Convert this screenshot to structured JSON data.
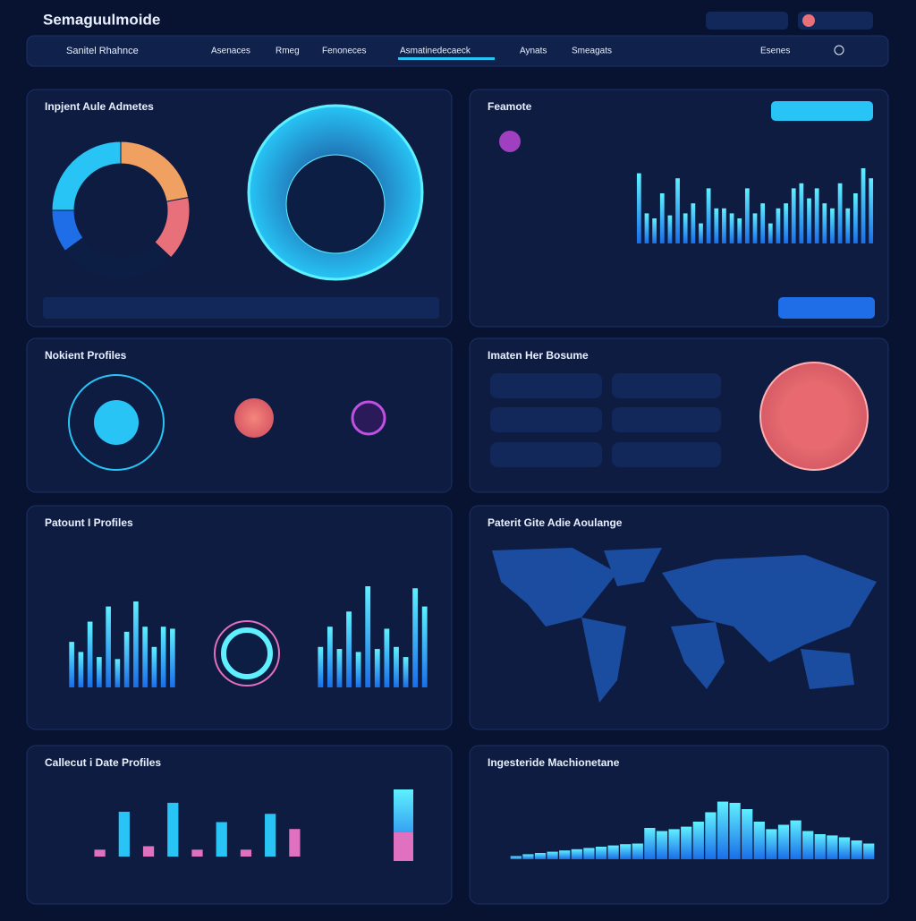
{
  "header": {
    "title": "Semaguulmoide"
  },
  "nav": {
    "brand": "Sanitel Rhahnce",
    "items": [
      "Asenaces",
      "Rmeg",
      "Fenoneces",
      "Asmatinedecaeck",
      "Aynats",
      "Smeagats",
      "Esenes"
    ]
  },
  "panels": [
    {
      "title": "Inpjent Aule Admetes"
    },
    {
      "title": "Feamote"
    },
    {
      "title": "Nokient Profiles"
    },
    {
      "title": "Imaten Her Bosume"
    },
    {
      "title": "Patount I Profiles"
    },
    {
      "title": "Paterit Gite Adie Aoulange"
    },
    {
      "title": "Callecut i Date Profiles"
    },
    {
      "title": "Ingesteride Machionetane"
    }
  ],
  "donut": {
    "values": [
      22,
      15,
      28,
      10,
      25
    ],
    "colors": [
      "#f0a060",
      "#e8707a",
      "#0d1e45",
      "#1f6ee8",
      "#27c4f5"
    ]
  },
  "feature_bars": {
    "ylim": [
      0,
      100
    ],
    "values": [
      70,
      30,
      25,
      50,
      28,
      65,
      30,
      40,
      20,
      55,
      35,
      35,
      30,
      25,
      55,
      30,
      40,
      20,
      35,
      40,
      55,
      60,
      45,
      55,
      40,
      35,
      60,
      35,
      50,
      75,
      65
    ],
    "color": "#27c4f5"
  },
  "profile_bars_left": {
    "ylim": [
      0,
      100
    ],
    "values": [
      45,
      35,
      65,
      30,
      80,
      28,
      55,
      85,
      60,
      40,
      60,
      58
    ],
    "color": "#27c4f5"
  },
  "profile_bars_right": {
    "ylim": [
      0,
      100
    ],
    "values": [
      40,
      60,
      38,
      75,
      35,
      100,
      38,
      58,
      40,
      30,
      98,
      80
    ],
    "color": "#27c4f5"
  },
  "date_bars": {
    "ylim": [
      0,
      100
    ],
    "values": [
      10,
      65,
      15,
      78,
      10,
      50,
      10,
      62,
      40
    ],
    "colors": [
      "#e070c0",
      "#27c4f5",
      "#e070c0",
      "#27c4f5",
      "#e070c0",
      "#27c4f5",
      "#e070c0",
      "#27c4f5",
      "#e070c0"
    ]
  },
  "machine_bars": {
    "ylim": [
      0,
      100
    ],
    "values": [
      5,
      8,
      10,
      12,
      14,
      16,
      18,
      20,
      22,
      24,
      25,
      50,
      45,
      48,
      52,
      60,
      75,
      92,
      90,
      80,
      60,
      48,
      55,
      62,
      45,
      40,
      38,
      35,
      30,
      25
    ],
    "color": "#27c4f5"
  }
}
